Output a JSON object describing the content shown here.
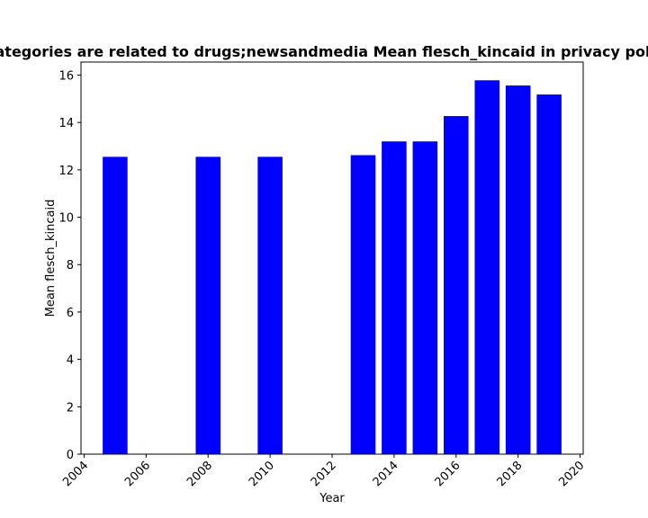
{
  "chart_data": {
    "type": "bar",
    "title": "Categories are related to drugs;newsandmedia Mean flesch_kincaid in privacy policies",
    "xlabel": "Year",
    "ylabel": "Mean flesch_kincaid",
    "x": [
      2005,
      2008,
      2010,
      2013,
      2014,
      2015,
      2016,
      2017,
      2018,
      2019
    ],
    "values": [
      12.55,
      12.55,
      12.55,
      12.62,
      13.2,
      13.2,
      14.27,
      15.78,
      15.56,
      15.18
    ],
    "xlim": [
      2003.9,
      2020.1
    ],
    "ylim": [
      0,
      16.55
    ],
    "xticks": [
      2004,
      2006,
      2008,
      2010,
      2012,
      2014,
      2016,
      2018,
      2020
    ],
    "yticks": [
      0,
      2,
      4,
      6,
      8,
      10,
      12,
      14,
      16
    ],
    "bar_color": "#0000ff",
    "grid": false
  }
}
